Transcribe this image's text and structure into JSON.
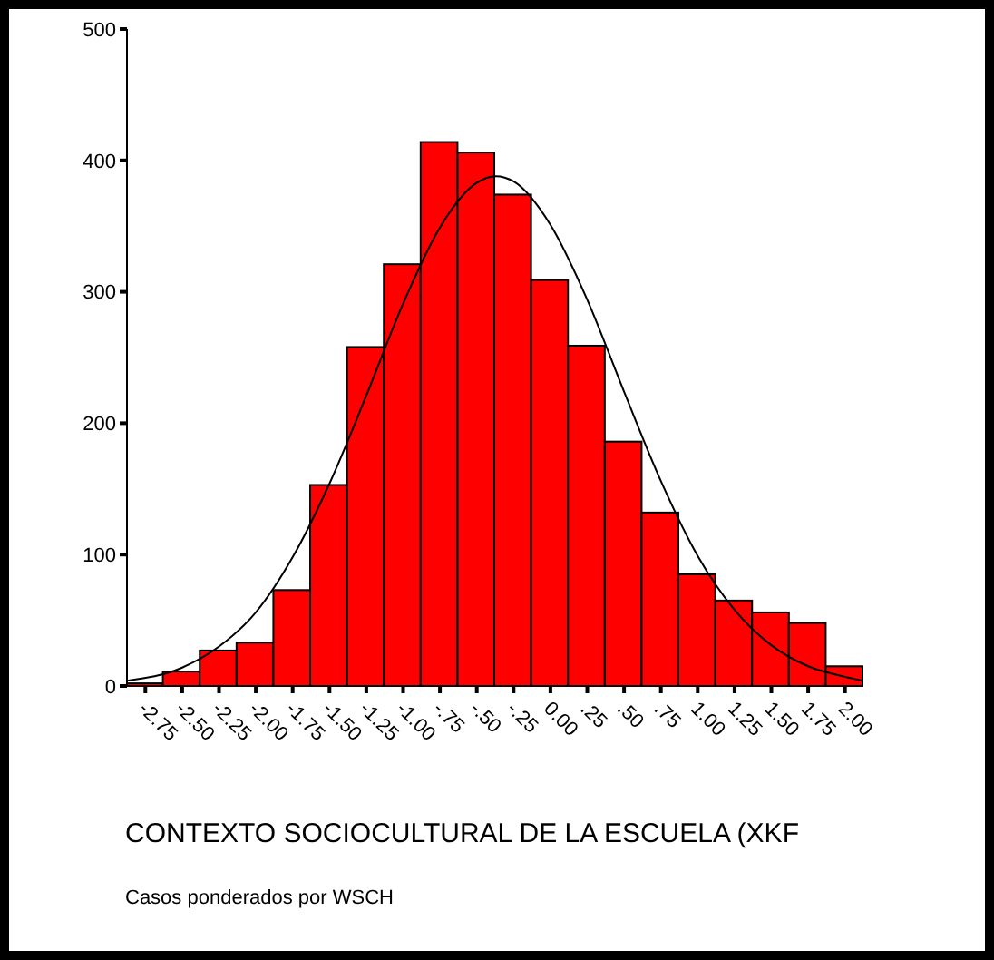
{
  "chart_data": {
    "type": "histogram",
    "xlabel": "CONTEXTO SOCIOCULTURAL DE LA ESCUELA (XKF",
    "annotations": [
      "Casos ponderados por WSCH"
    ],
    "bins": [
      -2.875,
      -2.625,
      -2.375,
      -2.125,
      -1.875,
      -1.625,
      -1.375,
      -1.125,
      -0.875,
      -0.625,
      -0.375,
      -0.125,
      0.125,
      0.375,
      0.625,
      0.875,
      1.125,
      1.375,
      1.625,
      1.875,
      2.125
    ],
    "values": [
      2,
      11,
      27,
      33,
      73,
      153,
      258,
      321,
      414,
      406,
      374,
      309,
      259,
      186,
      132,
      85,
      65,
      56,
      48,
      15
    ],
    "color": "#ff0000",
    "series": [
      {
        "type": "line",
        "color": "#000000",
        "x": [
          -2.875,
          -2.5,
          -2.25,
          -2,
          -1.75,
          -1.5,
          -1.25,
          -1,
          -0.75,
          -0.5,
          -0.37,
          -0.25,
          0,
          0.25,
          0.5,
          0.75,
          1,
          1.25,
          1.5,
          1.75,
          2,
          2.125
        ],
        "values": [
          4,
          14,
          30,
          56,
          98,
          154,
          221,
          291,
          349,
          383,
          388,
          384,
          351,
          294,
          224,
          156,
          99,
          58,
          31,
          15,
          7,
          4
        ]
      }
    ],
    "xlim": [
      -2.875,
      2.125
    ],
    "xticks": [
      {
        "value": -2.75,
        "label": "-2.75"
      },
      {
        "value": -2.5,
        "label": "-2.50"
      },
      {
        "value": -2.25,
        "label": "-2.25"
      },
      {
        "value": -2,
        "label": "-2.00"
      },
      {
        "value": -1.75,
        "label": "-1.75"
      },
      {
        "value": -1.5,
        "label": "-1.50"
      },
      {
        "value": -1.25,
        "label": "-1.25"
      },
      {
        "value": -1,
        "label": "-1.00"
      },
      {
        "value": -0.75,
        "label": "-.75"
      },
      {
        "value": -0.5,
        "label": "-.50"
      },
      {
        "value": -0.25,
        "label": "-.25"
      },
      {
        "value": 0,
        "label": "0.00"
      },
      {
        "value": 0.25,
        "label": ".25"
      },
      {
        "value": 0.5,
        "label": ".50"
      },
      {
        "value": 0.75,
        "label": ".75"
      },
      {
        "value": 1,
        "label": "1.00"
      },
      {
        "value": 1.25,
        "label": "1.25"
      },
      {
        "value": 1.5,
        "label": "1.50"
      },
      {
        "value": 1.75,
        "label": "1.75"
      },
      {
        "value": 2,
        "label": "2.00"
      }
    ],
    "ylim": [
      0,
      500
    ],
    "yticks": [
      0,
      100,
      200,
      300,
      400,
      500
    ],
    "grid": false,
    "legend": false
  }
}
